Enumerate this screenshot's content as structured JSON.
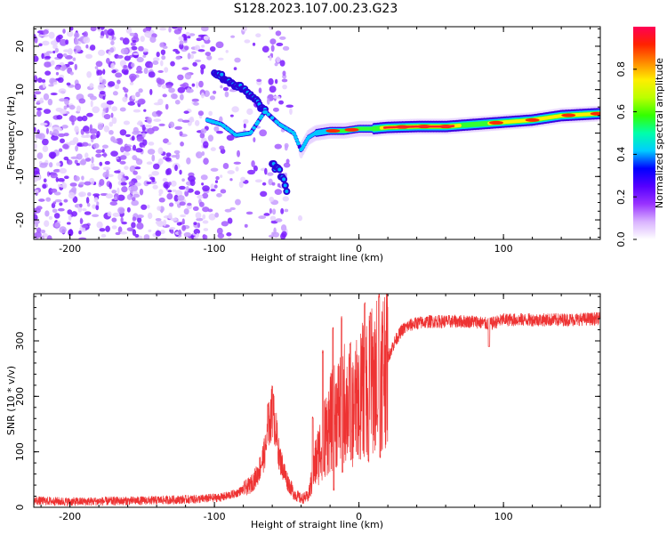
{
  "title": "S128.2023.107.00.23.G23",
  "chart_data": [
    {
      "type": "heatmap",
      "xlabel": "Height of straight line (km)",
      "ylabel": "Frequency (Hz)",
      "xlim": [
        -225,
        167
      ],
      "ylim": [
        -24.5,
        24.5
      ],
      "xticks": [
        -200,
        -100,
        0,
        100
      ],
      "yticks": [
        -20,
        -10,
        0,
        10,
        20
      ],
      "colorbar": {
        "label": "Normalized spectral amplitude",
        "range": [
          0,
          1
        ],
        "ticks": [
          "0.0",
          "0.2",
          "0.4",
          "0.6",
          "0.8"
        ],
        "tick_values": [
          0.0,
          0.2,
          0.4,
          0.6,
          0.8
        ],
        "colormap": [
          "#ffffff",
          "#d9b3ff",
          "#9933ff",
          "#5500ff",
          "#0000ff",
          "#00ccff",
          "#00ffaa",
          "#33ff00",
          "#bbff00",
          "#ffee00",
          "#ff8800",
          "#ff2200",
          "#ff0055"
        ]
      },
      "ridge": {
        "x": [
          -105,
          -95,
          -85,
          -75,
          -65,
          -55,
          -45,
          -40,
          -35,
          -30,
          -20,
          -10,
          0,
          10,
          20,
          40,
          60,
          80,
          100,
          120,
          140,
          167
        ],
        "y": [
          3,
          2,
          -0.5,
          0,
          5,
          2,
          0,
          -4,
          -1,
          0,
          0.5,
          0.5,
          1,
          1,
          1.3,
          1.5,
          1.5,
          2,
          2.5,
          3,
          4,
          4.5
        ]
      },
      "upper_branch": {
        "x": [
          -100,
          -90,
          -80,
          -70,
          -65
        ],
        "y": [
          14,
          12,
          10,
          7,
          5
        ]
      },
      "lower_branch": {
        "x": [
          -60,
          -55,
          -52,
          -50
        ],
        "y": [
          -7,
          -9,
          -11,
          -13
        ]
      },
      "noise_region": [
        -225,
        -40
      ],
      "grid": false
    },
    {
      "type": "line",
      "xlabel": "Height of straight line (km)",
      "ylabel": "SNR (10 * v/v)",
      "xlim": [
        -225,
        167
      ],
      "ylim": [
        0,
        385
      ],
      "xticks": [
        -200,
        -100,
        0,
        100
      ],
      "yticks": [
        0,
        100,
        200,
        300
      ],
      "color": "#ee3333",
      "profile": {
        "x": [
          -225,
          -200,
          -150,
          -110,
          -95,
          -85,
          -75,
          -70,
          -65,
          -62,
          -60,
          -58,
          -55,
          -50,
          -45,
          -40,
          -35,
          -30,
          -25,
          -20,
          -15,
          -10,
          -5,
          0,
          5,
          10,
          15,
          20,
          25,
          30,
          35,
          40,
          50,
          60,
          80,
          90,
          100,
          120,
          140,
          167
        ],
        "y": [
          12,
          10,
          12,
          15,
          18,
          25,
          40,
          60,
          100,
          150,
          175,
          150,
          90,
          50,
          25,
          15,
          20,
          80,
          120,
          150,
          170,
          190,
          170,
          200,
          220,
          230,
          250,
          270,
          300,
          320,
          328,
          332,
          335,
          335,
          335,
          330,
          338,
          338,
          338,
          340
        ]
      },
      "spike_tops": {
        "x": [
          -63,
          -60,
          -32,
          -25,
          -18,
          -12,
          -6,
          4,
          8,
          14
        ],
        "y": [
          190,
          222,
          165,
          285,
          325,
          345,
          300,
          370,
          355,
          385
        ]
      },
      "spike_bottoms": {
        "x": [
          -25,
          -18,
          -12,
          -6,
          0,
          6,
          12,
          14
        ],
        "y": [
          60,
          30,
          60,
          80,
          140,
          80,
          160,
          88
        ]
      },
      "dip": {
        "x": 90,
        "y": 290
      },
      "grid": false
    }
  ]
}
